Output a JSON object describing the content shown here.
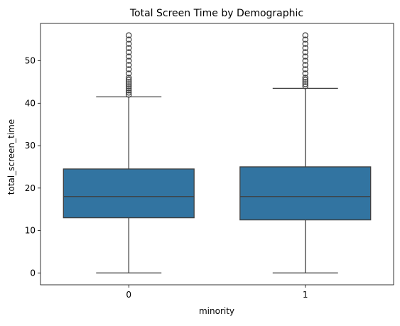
{
  "chart_data": {
    "type": "box",
    "title": "Total Screen Time by Demographic",
    "xlabel": "minority",
    "ylabel": "total_screen_time",
    "categories": [
      "0",
      "1"
    ],
    "ylim": [
      -2.8,
      58.8
    ],
    "yticks": [
      0,
      10,
      20,
      30,
      40,
      50
    ],
    "grid": false,
    "legend": "none",
    "box_color": "#3274a1",
    "edge_color": "#3f3f3f",
    "boxes": [
      {
        "category": "0",
        "whisker_low": 0,
        "q1": 13,
        "median": 18,
        "q3": 24.5,
        "whisker_high": 41.5,
        "outliers": [
          42,
          42.5,
          43,
          43.5,
          44,
          44.5,
          45,
          45.5,
          46,
          47,
          48,
          49,
          50,
          51,
          52,
          53,
          54,
          55,
          56
        ]
      },
      {
        "category": "1",
        "whisker_low": 0,
        "q1": 12.5,
        "median": 18,
        "q3": 25,
        "whisker_high": 43.5,
        "outliers": [
          44,
          44.5,
          45,
          45.5,
          46,
          47,
          48,
          49,
          50,
          51,
          52,
          53,
          54,
          55,
          56
        ]
      }
    ]
  }
}
